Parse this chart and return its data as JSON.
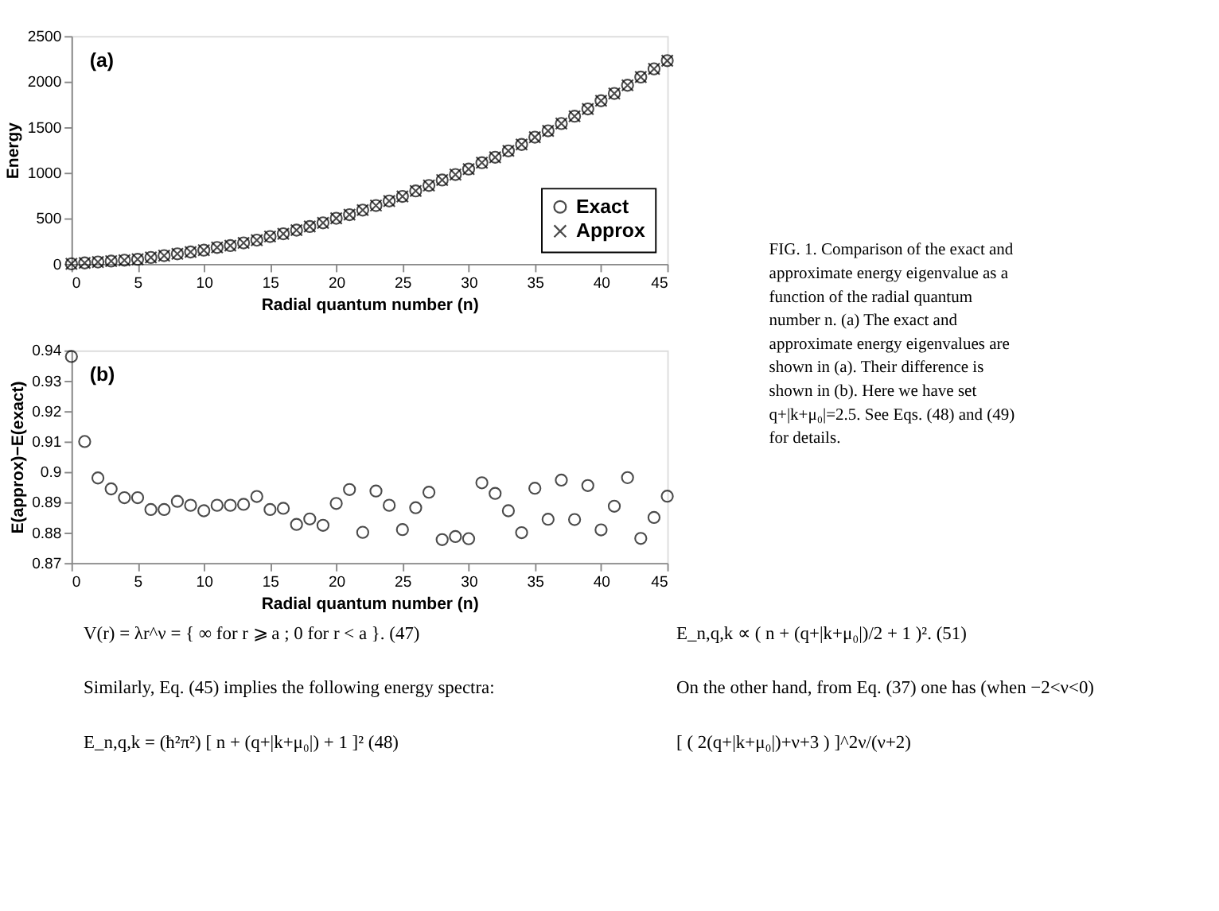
{
  "chart_data": [
    {
      "type": "scatter",
      "xlabel": "Radial quantum number (n)",
      "ylabel": "Energy",
      "x": [
        0,
        1,
        2,
        3,
        4,
        5,
        6,
        7,
        8,
        9,
        10,
        11,
        12,
        13,
        14,
        15,
        16,
        17,
        18,
        19,
        20,
        21,
        22,
        23,
        24,
        25,
        26,
        27,
        28,
        29,
        30,
        31,
        32,
        33,
        34,
        35,
        36,
        37,
        38,
        39,
        40,
        41,
        42,
        43,
        44,
        45
      ],
      "series": [
        {
          "name": "Exact",
          "color": "#000000",
          "marker": "circle",
          "values": [
            0,
            10,
            20,
            30,
            40,
            50,
            70,
            90,
            110,
            130,
            150,
            180,
            200,
            230,
            260,
            300,
            330,
            370,
            410,
            450,
            500,
            540,
            590,
            640,
            690,
            740,
            800,
            860,
            920,
            980,
            1040,
            1110,
            1170,
            1240,
            1310,
            1390,
            1460,
            1540,
            1620,
            1700,
            1790,
            1870,
            1960,
            2050,
            2140,
            2230
          ]
        },
        {
          "name": "Approx",
          "color": "#000000",
          "marker": "cross",
          "values": [
            0,
            10,
            20,
            30,
            40,
            50,
            70,
            90,
            110,
            130,
            150,
            180,
            200,
            230,
            260,
            300,
            330,
            370,
            410,
            450,
            500,
            540,
            590,
            640,
            690,
            740,
            800,
            860,
            920,
            980,
            1040,
            1110,
            1170,
            1240,
            1310,
            1390,
            1460,
            1540,
            1620,
            1700,
            1790,
            1870,
            1960,
            2050,
            2140,
            2230
          ]
        }
      ],
      "xlim": [
        0,
        45
      ],
      "xticks": [
        0,
        5,
        10,
        15,
        20,
        25,
        30,
        35,
        40,
        45
      ],
      "ylim": [
        0,
        2500
      ],
      "yticks": [
        0,
        500,
        1000,
        1500,
        2000,
        2500
      ],
      "grid": false,
      "legend": "bottom right",
      "annotations": [
        "(a)",
        "FIG. 1. Comparison of the exact and approximate energy eigenvalue as a function of the radial quantum number n. (a) The exact and approximate energy eigenvalues are shown in (a). Their difference is shown in (b). Here we have set q+|k+μ₀|=2.5. See Eqs. (48) and (49) for details."
      ]
    },
    {
      "type": "scatter",
      "xlabel": "Radial quantum number (n)",
      "ylabel": "E(approx)−E(exact)",
      "x": [
        0,
        1,
        2,
        3,
        4,
        5,
        6,
        7,
        8,
        9,
        10,
        11,
        12,
        13,
        14,
        15,
        16,
        17,
        18,
        19,
        20,
        21,
        22,
        23,
        24,
        25,
        26,
        27,
        28,
        29,
        30,
        31,
        32,
        33,
        34,
        35,
        36,
        37,
        38,
        39,
        40,
        41,
        42,
        43,
        44,
        45
      ],
      "series": [
        {
          "color": "#000000",
          "marker": "circle",
          "values": [
            0.938,
            0.91,
            0.898,
            0.8944,
            0.8915,
            0.8915,
            0.8876,
            0.8876,
            0.8903,
            0.889,
            0.8872,
            0.889,
            0.889,
            0.8893,
            0.8919,
            0.8876,
            0.888,
            0.8827,
            0.8845,
            0.8824,
            0.8896,
            0.8942,
            0.8801,
            0.8937,
            0.889,
            0.881,
            0.8882,
            0.8933,
            0.8777,
            0.8787,
            0.878,
            0.8964,
            0.8929,
            0.8872,
            0.88,
            0.8946,
            0.8844,
            0.8973,
            0.8843,
            0.8955,
            0.8809,
            0.8887,
            0.8981,
            0.8781,
            0.885,
            0.892
          ]
        }
      ],
      "xlim": [
        0,
        45
      ],
      "xticks": [
        0,
        5,
        10,
        15,
        20,
        25,
        30,
        35,
        40,
        45
      ],
      "ylim": [
        0.87,
        0.94
      ],
      "yticks": [
        0.87,
        0.88,
        0.89,
        0.9,
        0.91,
        0.92,
        0.93,
        0.94
      ],
      "grid": false,
      "legend": false,
      "annotations": [
        "(b)",
        "V(r) = λr^ν = { ∞ for r ⩾ a ; 0 for r < a }.      (47)",
        "Similarly, Eq. (45) implies the following energy spectra:",
        "E_n,q,k = (ħ²π²) [ n + (q+|k+μ₀|) + 1 ]²      (48)",
        "E_n,q,k ∝ ( n + (q+|k+μ₀|)/2 + 1 )².      (51)",
        "On the other hand, from Eq. (37) one has (when −2<ν<0)",
        "[ ( 2(q+|k+μ₀|)+ν+3 ) ]^2ν/(ν+2)"
      ]
    }
  ]
}
